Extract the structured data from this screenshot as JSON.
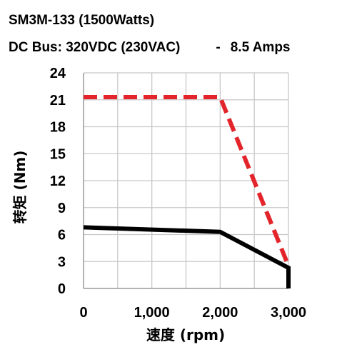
{
  "header": {
    "model": "SM3M-133 (1500Watts)",
    "bus": "DC Bus: 320VDC (230VAC)",
    "dash": "-",
    "amps": "8.5 Amps"
  },
  "chart_data": {
    "type": "line",
    "title": "",
    "xlabel": "速度 (rpm)",
    "ylabel": "转矩 (Nm)",
    "xlim": [
      0,
      3000
    ],
    "ylim": [
      0,
      24
    ],
    "xticks": [
      0,
      1000,
      2000,
      3000
    ],
    "xtick_labels": [
      "0",
      "1,000",
      "2,000",
      "3,000"
    ],
    "yticks": [
      0,
      3,
      6,
      9,
      12,
      15,
      18,
      21,
      24
    ],
    "ytick_labels": [
      "0",
      "3",
      "6",
      "9",
      "12",
      "15",
      "18",
      "21",
      "24"
    ],
    "x_minor_step": 500,
    "grid": true,
    "legend": "none",
    "series": [
      {
        "style": "dashed",
        "color": "#e3242b",
        "x": [
          0,
          2000,
          3000
        ],
        "y": [
          21.3,
          21.3,
          2.5
        ]
      },
      {
        "style": "solid",
        "color": "#000000",
        "x": [
          0,
          2000,
          3000,
          3000
        ],
        "y": [
          6.8,
          6.3,
          2.3,
          0
        ]
      }
    ]
  }
}
